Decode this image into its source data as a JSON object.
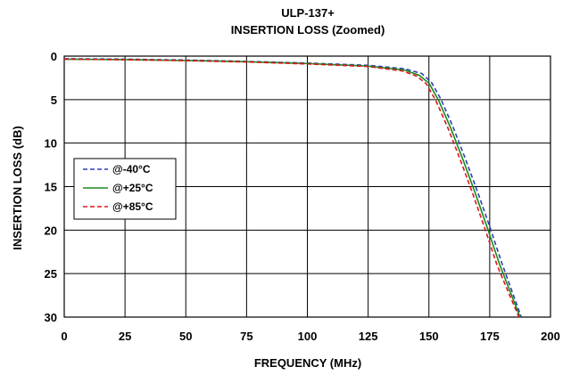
{
  "chart_data": {
    "type": "line",
    "title": "ULP-137+",
    "subtitle": "INSERTION LOSS (Zoomed)",
    "xlabel": "FREQUENCY (MHz)",
    "ylabel": "INSERTION LOSS (dB)",
    "xlim": [
      0,
      200
    ],
    "ylim": [
      0,
      30
    ],
    "y_inverted": true,
    "grid": true,
    "legend_position": "middle-left",
    "x_ticks": [
      "0",
      "25",
      "50",
      "75",
      "100",
      "125",
      "150",
      "175",
      "200"
    ],
    "y_ticks": [
      "0",
      "5",
      "10",
      "15",
      "20",
      "25",
      "30"
    ],
    "series": [
      {
        "name": "@-40°C",
        "color": "#2E3FB5",
        "style": "dashed",
        "x": [
          0,
          25,
          50,
          75,
          100,
          125,
          140,
          147,
          151,
          155,
          160,
          165,
          170,
          175,
          180,
          188
        ],
        "y": [
          0.3,
          0.35,
          0.45,
          0.6,
          0.8,
          1.05,
          1.45,
          2.0,
          3.0,
          5.0,
          8.2,
          11.8,
          15.6,
          19.6,
          23.8,
          30.0
        ]
      },
      {
        "name": "@+25°C",
        "color": "#1A8A1A",
        "style": "solid",
        "x": [
          0,
          25,
          50,
          75,
          100,
          125,
          140,
          146,
          150,
          154,
          159,
          164,
          169,
          174,
          179,
          187.5
        ],
        "y": [
          0.35,
          0.4,
          0.5,
          0.65,
          0.85,
          1.15,
          1.6,
          2.2,
          3.1,
          5.1,
          8.3,
          11.9,
          15.7,
          19.7,
          23.9,
          30.0
        ]
      },
      {
        "name": "@+85°C",
        "color": "#E0141E",
        "style": "dashed",
        "x": [
          0,
          25,
          50,
          75,
          100,
          125,
          139,
          145,
          149,
          153,
          158,
          163,
          168,
          173,
          178,
          187
        ],
        "y": [
          0.35,
          0.42,
          0.52,
          0.68,
          0.9,
          1.2,
          1.7,
          2.3,
          3.2,
          5.2,
          8.4,
          12.0,
          15.8,
          19.8,
          24.0,
          30.0
        ]
      }
    ]
  }
}
